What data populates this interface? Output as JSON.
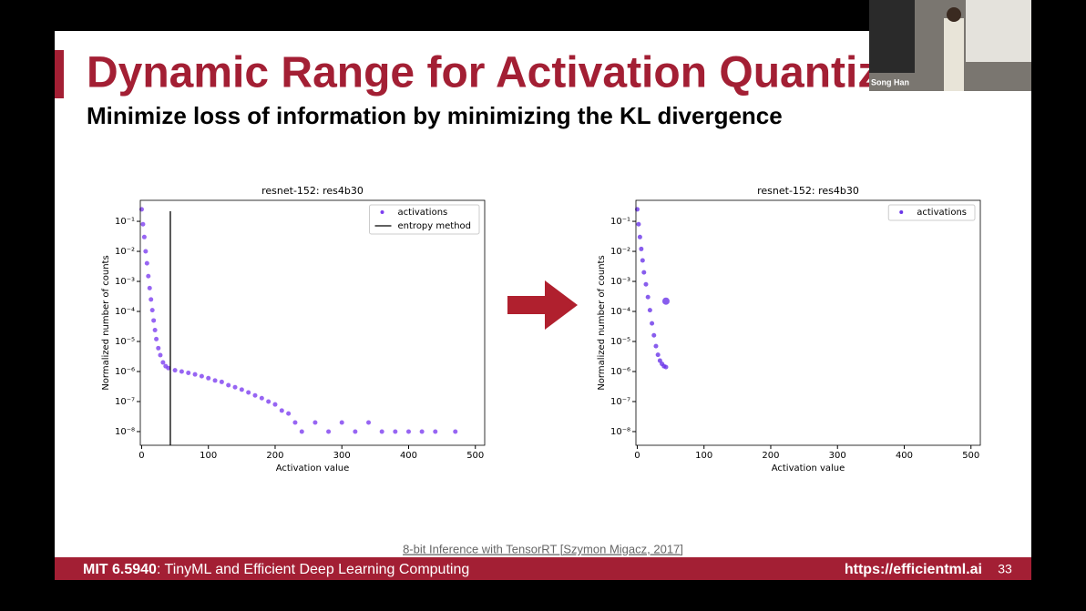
{
  "slide": {
    "title": "Dynamic Range for Activation Quantizat",
    "subtitle": "Minimize loss of information by minimizing the KL divergence",
    "citation": "8-bit Inference with TensorRT [Szymon Migacz, 2017]",
    "footer_left_bold": "MIT 6.5940",
    "footer_left": ": TinyML and Efficient Deep Learning Computing",
    "footer_url": "https://efficientml.ai",
    "page_number": "33",
    "speaker": "Song Han"
  },
  "chart_data": [
    {
      "type": "scatter",
      "title": "resnet-152: res4b30",
      "x_label": "Activation value",
      "y_label": "Normalized number of counts",
      "yscale": "log",
      "legend": "upper right",
      "xlim": [
        -2,
        514
      ],
      "ylim": [
        3.5e-09,
        0.5
      ],
      "xticks": [
        0,
        100,
        200,
        300,
        400,
        500
      ],
      "yticks": [
        {
          "value": 0.1,
          "label": "10⁻¹"
        },
        {
          "value": 0.01,
          "label": "10⁻²"
        },
        {
          "value": 0.001,
          "label": "10⁻³"
        },
        {
          "value": 0.0001,
          "label": "10⁻⁴"
        },
        {
          "value": 1e-05,
          "label": "10⁻⁵"
        },
        {
          "value": 1e-06,
          "label": "10⁻⁶"
        },
        {
          "value": 1e-07,
          "label": "10⁻⁷"
        },
        {
          "value": 1e-08,
          "label": "10⁻⁸"
        }
      ],
      "x": [
        0,
        2,
        4,
        6,
        8,
        10,
        12,
        14,
        16,
        18,
        20,
        22,
        25,
        28,
        32,
        36,
        40,
        50,
        60,
        70,
        80,
        90,
        100,
        110,
        120,
        130,
        140,
        150,
        160,
        170,
        180,
        190,
        200,
        210,
        220,
        230,
        240,
        260,
        280,
        300,
        320,
        340,
        360,
        380,
        400,
        420,
        440,
        470
      ],
      "series": [
        {
          "name": "activations",
          "color": "#7d3ff0",
          "values": [
            0.25,
            0.08,
            0.03,
            0.01,
            0.004,
            0.0015,
            0.0006,
            0.00025,
            0.00011,
            5e-05,
            2.4e-05,
            1.2e-05,
            6e-06,
            3.5e-06,
            2e-06,
            1.5e-06,
            1.3e-06,
            1.1e-06,
            1e-06,
            9e-07,
            8e-07,
            7e-07,
            6e-07,
            5e-07,
            4.5e-07,
            3.5e-07,
            3e-07,
            2.5e-07,
            2e-07,
            1.6e-07,
            1.3e-07,
            1e-07,
            8e-08,
            5e-08,
            4e-08,
            2e-08,
            1e-08,
            2e-08,
            1e-08,
            2e-08,
            1e-08,
            2e-08,
            1e-08,
            1e-08,
            1e-08,
            1e-08,
            1e-08,
            1e-08
          ]
        }
      ],
      "vline": {
        "name": "entropy method",
        "x": 43,
        "color": "#000000"
      }
    },
    {
      "type": "scatter",
      "title": "resnet-152: res4b30",
      "x_label": "Activation value",
      "y_label": "Normalized number of counts",
      "yscale": "log",
      "legend": "upper right",
      "xlim": [
        -2,
        514
      ],
      "ylim": [
        3.5e-09,
        0.5
      ],
      "xticks": [
        0,
        100,
        200,
        300,
        400,
        500
      ],
      "yticks": [
        {
          "value": 0.1,
          "label": "10⁻¹"
        },
        {
          "value": 0.01,
          "label": "10⁻²"
        },
        {
          "value": 0.001,
          "label": "10⁻³"
        },
        {
          "value": 0.0001,
          "label": "10⁻⁴"
        },
        {
          "value": 1e-05,
          "label": "10⁻⁵"
        },
        {
          "value": 1e-06,
          "label": "10⁻⁶"
        },
        {
          "value": 1e-07,
          "label": "10⁻⁷"
        },
        {
          "value": 1e-08,
          "label": "10⁻⁸"
        }
      ],
      "x": [
        0,
        2,
        4,
        6,
        8,
        10,
        13,
        16,
        19,
        22,
        25,
        28,
        31,
        34,
        37,
        40,
        43,
        43
      ],
      "series": [
        {
          "name": "activations",
          "color": "#6a35e8",
          "values": [
            0.25,
            0.08,
            0.03,
            0.012,
            0.005,
            0.002,
            0.0008,
            0.0003,
            0.00011,
            4e-05,
            1.6e-05,
            7e-06,
            3.6e-06,
            2.3e-06,
            1.8e-06,
            1.5e-06,
            1.4e-06,
            0.00022
          ],
          "marker_sizes": [
            2.5,
            2.5,
            2.5,
            2.5,
            2.5,
            2.5,
            2.5,
            2.5,
            2.5,
            2.5,
            2.5,
            2.5,
            2.5,
            2.5,
            2.5,
            2.5,
            2.5,
            4
          ]
        }
      ]
    }
  ]
}
